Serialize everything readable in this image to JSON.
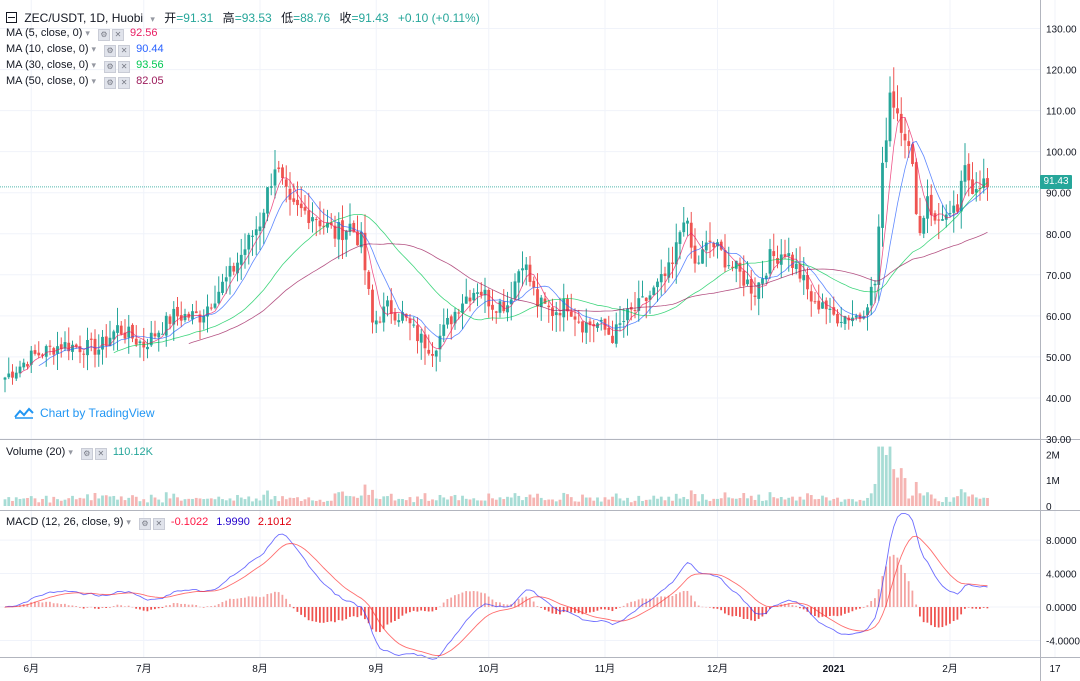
{
  "header": {
    "symbol": "ZEC/USDT, 1D, Huobi",
    "open_label": "开",
    "open": "=91.31",
    "high_label": "高",
    "high": "=93.53",
    "low_label": "低",
    "low": "=88.76",
    "close_label": "收",
    "close": "=91.43",
    "change": "+0.10 (+0.11%)"
  },
  "indicators": [
    {
      "label": "MA (5, close, 0)",
      "value": "92.56",
      "color": "#e91e63"
    },
    {
      "label": "MA (10, close, 0)",
      "value": "90.44",
      "color": "#2962ff"
    },
    {
      "label": "MA (30, close, 0)",
      "value": "93.56",
      "color": "#00c853"
    },
    {
      "label": "MA (50, close, 0)",
      "value": "82.05",
      "color": "#9c1b5b"
    }
  ],
  "volume_legend": {
    "label": "Volume (20)",
    "value": "110.12K"
  },
  "macd_legend": {
    "label": "MACD (12, 26, close, 9)",
    "hist": "-0.1022",
    "macd": "1.9990",
    "signal": "2.1012"
  },
  "watermark": "Chart by TradingView",
  "last_price": "91.43",
  "icons": [
    "collapse-icon",
    "settings-icon",
    "close-icon",
    "tradingview-logo-icon"
  ],
  "chart_data": {
    "type": "candlestick",
    "price_axis": {
      "ticks": [
        "130.00",
        "120.00",
        "110.00",
        "100.00",
        "90.00",
        "80.00",
        "70.00",
        "60.00",
        "50.00",
        "40.00",
        "30.00"
      ],
      "range": [
        30,
        135
      ]
    },
    "volume_axis": {
      "ticks": [
        "2M",
        "1M",
        "0"
      ],
      "range": [
        0,
        2400000
      ]
    },
    "macd_axis": {
      "ticks": [
        "8.0000",
        "4.0000",
        "0.0000",
        "-4.0000"
      ],
      "range": [
        -5.5,
        11
      ]
    },
    "x_ticks": [
      "6月",
      "7月",
      "8月",
      "9月",
      "10月",
      "11月",
      "12月",
      "2021",
      "2月",
      "17"
    ],
    "x_tick_days": [
      7,
      37,
      68,
      99,
      129,
      160,
      190,
      221,
      252,
      280
    ],
    "close_series_keypoints": [
      [
        0,
        45
      ],
      [
        7,
        50
      ],
      [
        15,
        53
      ],
      [
        25,
        52
      ],
      [
        30,
        57
      ],
      [
        37,
        53
      ],
      [
        45,
        60
      ],
      [
        52,
        60
      ],
      [
        60,
        70
      ],
      [
        68,
        83
      ],
      [
        72,
        97
      ],
      [
        76,
        86
      ],
      [
        82,
        85
      ],
      [
        88,
        80
      ],
      [
        92,
        82
      ],
      [
        95,
        78
      ],
      [
        98,
        58
      ],
      [
        102,
        62
      ],
      [
        106,
        60
      ],
      [
        110,
        55
      ],
      [
        114,
        52
      ],
      [
        118,
        58
      ],
      [
        122,
        64
      ],
      [
        126,
        67
      ],
      [
        130,
        63
      ],
      [
        134,
        63
      ],
      [
        138,
        74
      ],
      [
        142,
        63
      ],
      [
        146,
        61
      ],
      [
        150,
        63
      ],
      [
        154,
        58
      ],
      [
        158,
        58
      ],
      [
        162,
        55
      ],
      [
        166,
        60
      ],
      [
        170,
        63
      ],
      [
        174,
        67
      ],
      [
        178,
        72
      ],
      [
        181,
        85
      ],
      [
        184,
        72
      ],
      [
        188,
        78
      ],
      [
        192,
        74
      ],
      [
        196,
        70
      ],
      [
        200,
        66
      ],
      [
        204,
        74
      ],
      [
        208,
        76
      ],
      [
        212,
        70
      ],
      [
        216,
        62
      ],
      [
        218,
        64
      ],
      [
        220,
        60
      ],
      [
        224,
        60
      ],
      [
        228,
        60
      ],
      [
        232,
        68
      ],
      [
        234,
        95
      ],
      [
        236,
        115
      ],
      [
        238,
        110
      ],
      [
        240,
        105
      ],
      [
        242,
        95
      ],
      [
        244,
        80
      ],
      [
        246,
        90
      ],
      [
        248,
        82
      ],
      [
        250,
        85
      ],
      [
        252,
        83
      ],
      [
        254,
        86
      ],
      [
        256,
        95
      ],
      [
        258,
        92
      ],
      [
        260,
        93
      ],
      [
        262,
        91.43
      ]
    ]
  }
}
